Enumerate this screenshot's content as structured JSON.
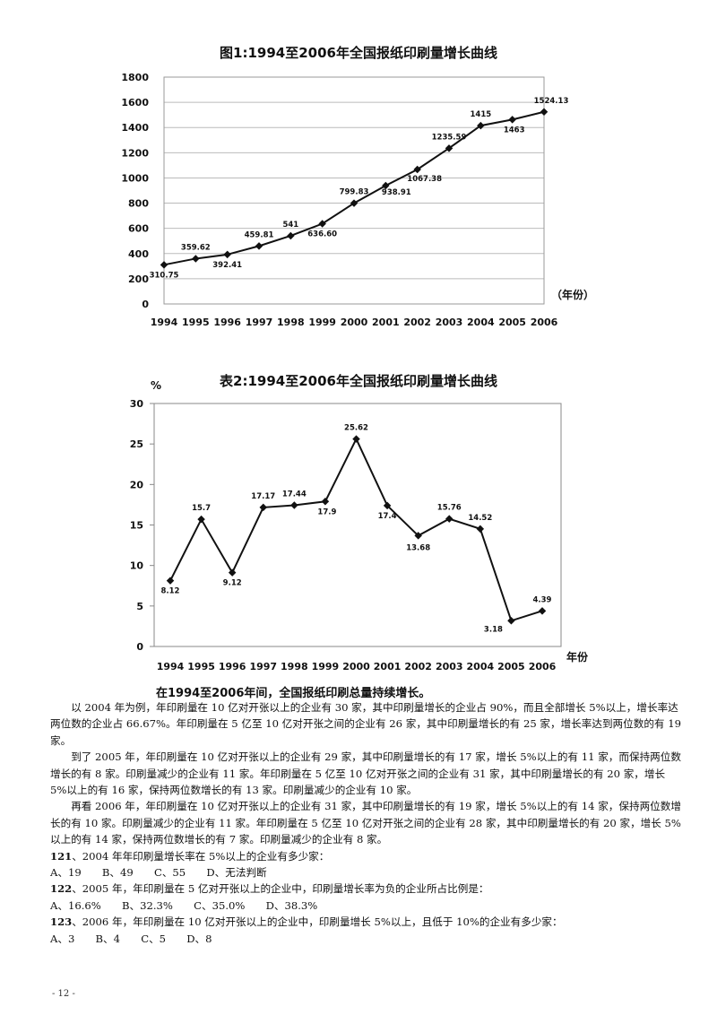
{
  "chart_data": [
    {
      "type": "line",
      "title": "图1:1994至2006年全国报纸印刷量增长曲线",
      "xlabel": "（年份）",
      "ylabel": "",
      "categories": [
        "1994",
        "1995",
        "1996",
        "1997",
        "1998",
        "1999",
        "2000",
        "2001",
        "2002",
        "2003",
        "2004",
        "2005",
        "2006"
      ],
      "values": [
        310.75,
        359.62,
        392.41,
        459.81,
        541,
        636.6,
        799.83,
        938.91,
        1067.38,
        1235.59,
        1415,
        1463,
        1524.13
      ],
      "value_labels": [
        "310.75",
        "359.62",
        "392.41",
        "459.81",
        "541",
        "636.60",
        "799.83",
        "938.91",
        "1067.38",
        "1235.59",
        "1415",
        "1463",
        "1524.13"
      ],
      "ylim": [
        0,
        1800
      ],
      "yticks": [
        "0",
        "200",
        "400",
        "600",
        "800",
        "1000",
        "1200",
        "1400",
        "1600",
        "1800"
      ],
      "grid": true
    },
    {
      "type": "line",
      "title": "表2:1994至2006年全国报纸印刷量增长曲线",
      "xlabel": "年份",
      "ylabel": "%",
      "categories": [
        "1994",
        "1995",
        "1996",
        "1997",
        "1998",
        "1999",
        "2000",
        "2001",
        "2002",
        "2003",
        "2004",
        "2005",
        "2006"
      ],
      "values": [
        8.12,
        15.7,
        9.12,
        17.17,
        17.44,
        17.9,
        25.62,
        17.4,
        13.68,
        15.76,
        14.52,
        3.18,
        4.39
      ],
      "value_labels": [
        "8.12",
        "15.7",
        "9.12",
        "17.17",
        "17.44",
        "17.9",
        "25.62",
        "17.4",
        "13.68",
        "15.76",
        "14.52",
        "3.18",
        "4.39"
      ],
      "ylim": [
        0,
        30
      ],
      "yticks": [
        "0",
        "5",
        "10",
        "15",
        "20",
        "25",
        "30"
      ],
      "grid": false
    }
  ],
  "summary": "在1994至2006年间，全国报纸印刷总量持续增长。",
  "paragraphs": [
    "以 2004 年为例，年印刷量在 10 亿对开张以上的企业有 30 家，其中印刷量增长的企业占 90%，而且全部增长 5%以上，增长率达两位数的企业占 66.67%。年印刷量在 5 亿至 10 亿对开张之间的企业有 26 家，其中印刷量增长的有 25 家，增长率达到两位数的有 19 家。",
    "到了 2005 年，年印刷量在 10 亿对开张以上的企业有 29 家，其中印刷量增长的有 17 家，增长 5%以上的有 11 家，而保持两位数增长的有 8 家。印刷量减少的企业有 11 家。年印刷量在 5 亿至 10 亿对开张之间的企业有 31 家，其中印刷量增长的有 20 家，增长 5%以上的有 16 家，保持两位数增长的有 13 家。印刷量减少的企业有 10 家。",
    "再看 2006 年，年印刷量在 10 亿对开张以上的企业有 31 家，其中印刷量增长的有 19 家，增长 5%以上的有 14 家，保持两位数增长的有 10 家。印刷量减少的企业有 11 家。年印刷量在 5 亿至 10 亿对开张之间的企业有 28 家，其中印刷量增长的有 20 家，增长 5%以上的有 14 家，保持两位数增长的有 7 家。印刷量减少的企业有 8 家。"
  ],
  "questions": [
    {
      "num": "121",
      "text": "、2004 年年印刷量增长率在 5%以上的企业有多少家：",
      "options": "A、19　　B、49　　C、55　　D、无法判断"
    },
    {
      "num": "122",
      "text": "、2005 年，年印刷量在 5 亿对开张以上的企业中，印刷量增长率为负的企业所占比例是：",
      "options": "A、16.6%　　B、32.3%　　C、35.0%　　D、38.3%"
    },
    {
      "num": "123",
      "text": "、2006 年，年印刷量在 10 亿对开张以上的企业中，印刷量增长 5%以上，且低于 10%的企业有多少家：",
      "options": "A、3　　B、4　　C、5　　D、8"
    }
  ],
  "page_number": "- 12 -"
}
